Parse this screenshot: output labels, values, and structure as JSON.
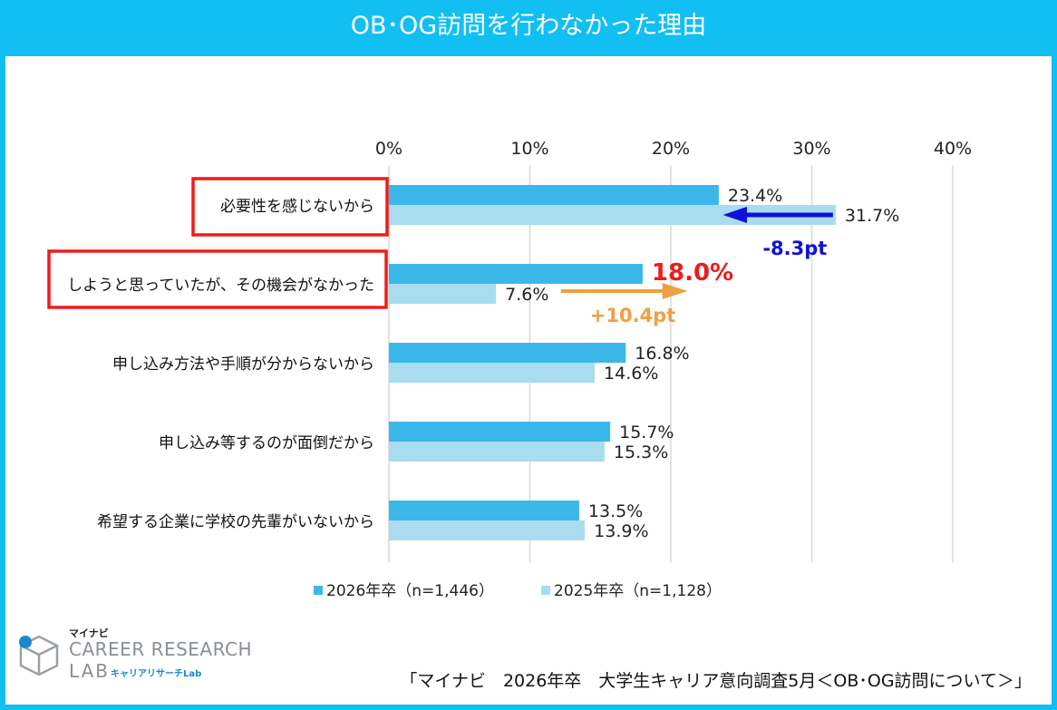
{
  "page": {
    "title": "OB･OG訪問を行わなかった理由",
    "source": "「マイナビ　2026年卒　大学生キャリア意向調査5月＜OB･OG訪問について＞」"
  },
  "logo": {
    "brand_small": "マイナビ",
    "main": "CAREER RESEARCH",
    "lab": "LAB",
    "sub": "キャリアリサーチLab"
  },
  "colors": {
    "accent": "#12bff2",
    "series_2026": "#3bb7ea",
    "series_2025": "#a9dcef",
    "highlight_box": "#ee1c1c",
    "decrease_arrow": "#1010dd",
    "increase_arrow": "#f0a040",
    "highlight_value": "#ee1c1c"
  },
  "chart_data": {
    "type": "bar",
    "orientation": "horizontal",
    "categories": [
      "必要性を感じないから",
      "しようと思っていたが、その機会がなかった",
      "申し込み方法や手順が分からないから",
      "申し込み等するのが面倒だから",
      "希望する企業に学校の先輩がいないから"
    ],
    "series": [
      {
        "name": "2026年卒（n=1,446）",
        "values": [
          23.4,
          18.0,
          16.8,
          15.7,
          13.5
        ]
      },
      {
        "name": "2025年卒（n=1,128）",
        "values": [
          31.7,
          7.6,
          14.6,
          15.3,
          13.9
        ]
      }
    ],
    "value_labels": [
      [
        "23.4%",
        "18.0%",
        "16.8%",
        "15.7%",
        "13.5%"
      ],
      [
        "31.7%",
        "7.6%",
        "14.6%",
        "15.3%",
        "13.9%"
      ]
    ],
    "xlim": [
      0,
      40
    ],
    "xticks": [
      0,
      10,
      20,
      30,
      40
    ],
    "xtick_labels": [
      "0%",
      "10%",
      "20%",
      "30%",
      "40%"
    ],
    "x_axis_position": "top",
    "grid": true,
    "legend_position": "bottom",
    "highlighted_categories": [
      0,
      1
    ],
    "annotations": [
      {
        "category": 0,
        "text": "-8.3pt",
        "direction": "decrease"
      },
      {
        "category": 1,
        "text": "+10.4pt",
        "direction": "increase"
      }
    ]
  }
}
